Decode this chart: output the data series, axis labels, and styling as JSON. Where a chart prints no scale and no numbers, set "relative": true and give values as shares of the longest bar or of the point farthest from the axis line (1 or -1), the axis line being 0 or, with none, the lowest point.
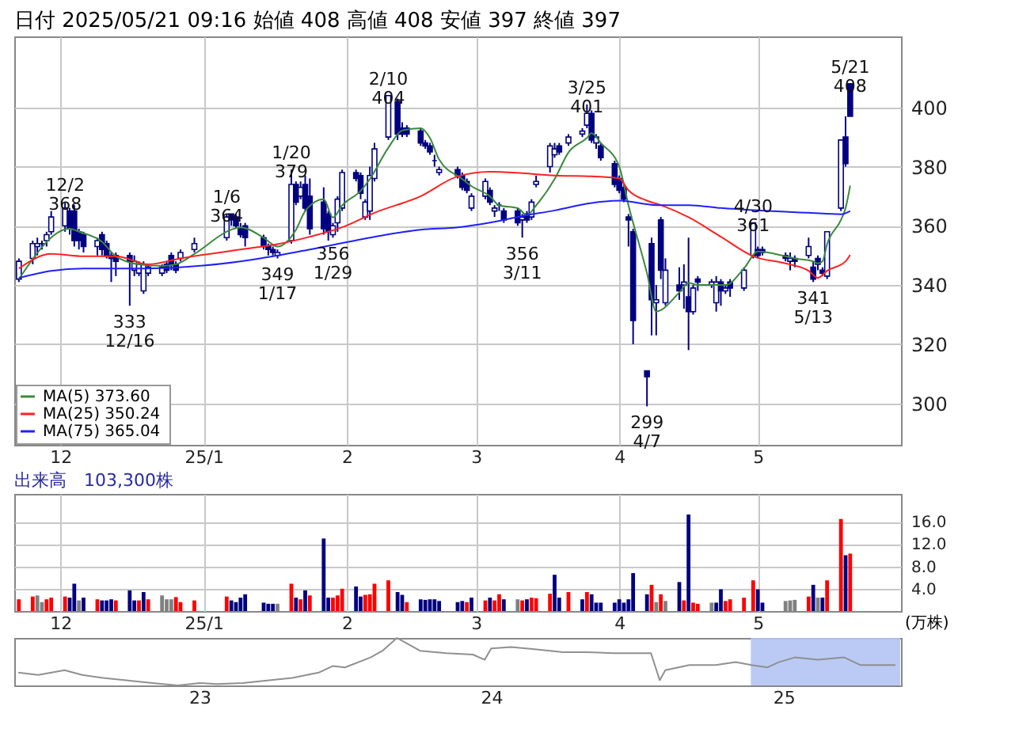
{
  "chart_data": [
    {
      "type": "candlestick",
      "title": "日付 2025/05/21 09:16 始値 408 高値 408 安値 397 終値 397",
      "x": [
        "2024-11-22",
        "2024-11-25",
        "2024-11-26",
        "2024-11-27",
        "2024-11-28",
        "2024-11-29",
        "2024-12-02",
        "2024-12-03",
        "2024-12-04",
        "2024-12-05",
        "2024-12-06",
        "2024-12-09",
        "2024-12-10",
        "2024-12-11",
        "2024-12-12",
        "2024-12-13",
        "2024-12-16",
        "2024-12-17",
        "2024-12-18",
        "2024-12-19",
        "2024-12-20",
        "2024-12-23",
        "2024-12-24",
        "2024-12-25",
        "2024-12-26",
        "2024-12-27",
        "2024-12-30",
        "2025-01-06",
        "2025-01-07",
        "2025-01-08",
        "2025-01-09",
        "2025-01-10",
        "2025-01-14",
        "2025-01-15",
        "2025-01-16",
        "2025-01-17",
        "2025-01-20",
        "2025-01-21",
        "2025-01-22",
        "2025-01-23",
        "2025-01-24",
        "2025-01-27",
        "2025-01-28",
        "2025-01-29",
        "2025-01-30",
        "2025-01-31",
        "2025-02-03",
        "2025-02-04",
        "2025-02-05",
        "2025-02-06",
        "2025-02-07",
        "2025-02-10",
        "2025-02-12",
        "2025-02-13",
        "2025-02-14",
        "2025-02-17",
        "2025-02-18",
        "2025-02-19",
        "2025-02-20",
        "2025-02-21",
        "2025-02-25",
        "2025-02-26",
        "2025-02-27",
        "2025-02-28",
        "2025-03-03",
        "2025-03-04",
        "2025-03-05",
        "2025-03-06",
        "2025-03-07",
        "2025-03-10",
        "2025-03-11",
        "2025-03-12",
        "2025-03-13",
        "2025-03-14",
        "2025-03-17",
        "2025-03-18",
        "2025-03-19",
        "2025-03-21",
        "2025-03-24",
        "2025-03-25",
        "2025-03-26",
        "2025-03-27",
        "2025-03-28",
        "2025-03-31",
        "2025-04-01",
        "2025-04-02",
        "2025-04-03",
        "2025-04-04",
        "2025-04-07",
        "2025-04-08",
        "2025-04-09",
        "2025-04-10",
        "2025-04-11",
        "2025-04-14",
        "2025-04-15",
        "2025-04-16",
        "2025-04-17",
        "2025-04-18",
        "2025-04-21",
        "2025-04-22",
        "2025-04-23",
        "2025-04-24",
        "2025-04-25",
        "2025-04-28",
        "2025-04-30",
        "2025-05-01",
        "2025-05-02",
        "2025-05-07",
        "2025-05-08",
        "2025-05-09",
        "2025-05-12",
        "2025-05-13",
        "2025-05-14",
        "2025-05-15",
        "2025-05-16",
        "2025-05-19",
        "2025-05-20",
        "2025-05-21"
      ],
      "ohlc": [
        [
          342,
          349,
          341,
          348
        ],
        [
          349,
          355,
          347,
          354
        ],
        [
          353,
          356,
          350,
          354
        ],
        [
          354,
          355,
          352,
          354
        ],
        [
          355,
          358,
          353,
          357
        ],
        [
          358,
          365,
          357,
          363
        ],
        [
          360,
          368,
          358,
          366
        ],
        [
          365,
          366,
          357,
          359
        ],
        [
          365,
          367,
          353,
          355
        ],
        [
          358,
          359,
          352,
          355
        ],
        [
          357,
          358,
          351,
          353
        ],
        [
          353,
          356,
          350,
          355
        ],
        [
          357,
          358,
          350,
          352
        ],
        [
          354,
          355,
          349,
          350
        ],
        [
          350,
          351,
          341,
          349
        ],
        [
          350,
          351,
          343,
          348
        ],
        [
          350,
          351,
          333,
          348
        ],
        [
          345,
          350,
          343,
          348
        ],
        [
          344,
          348,
          343,
          347
        ],
        [
          338,
          348,
          337,
          347
        ],
        [
          344,
          347,
          343,
          346
        ],
        [
          344,
          347,
          343,
          346
        ],
        [
          347,
          348,
          344,
          345
        ],
        [
          350,
          351,
          345,
          347
        ],
        [
          347,
          348,
          344,
          345
        ],
        [
          349,
          352,
          348,
          351
        ],
        [
          352,
          356,
          351,
          354
        ],
        [
          356,
          364,
          355,
          363
        ],
        [
          364,
          364,
          360,
          362
        ],
        [
          363,
          364,
          359,
          360
        ],
        [
          359,
          361,
          356,
          357
        ],
        [
          360,
          361,
          353,
          356
        ],
        [
          356,
          357,
          352,
          353
        ],
        [
          353,
          354,
          350,
          352
        ],
        [
          352,
          353,
          350,
          351
        ],
        [
          350,
          352,
          349,
          351
        ],
        [
          355,
          379,
          354,
          374
        ],
        [
          374,
          375,
          367,
          368
        ],
        [
          370,
          375,
          369,
          373
        ],
        [
          374,
          377,
          365,
          366
        ],
        [
          370,
          376,
          357,
          359
        ],
        [
          368,
          373,
          357,
          359
        ],
        [
          364,
          365,
          355,
          358
        ],
        [
          357,
          361,
          356,
          360
        ],
        [
          361,
          370,
          358,
          369
        ],
        [
          366,
          379,
          365,
          378
        ],
        [
          378,
          379,
          375,
          376
        ],
        [
          377,
          378,
          369,
          371
        ],
        [
          363,
          369,
          362,
          368
        ],
        [
          365,
          380,
          362,
          377
        ],
        [
          376,
          388,
          375,
          386
        ],
        [
          390,
          404,
          389,
          404
        ],
        [
          402,
          403,
          389,
          391
        ],
        [
          393,
          395,
          390,
          391
        ],
        [
          393,
          394,
          390,
          391
        ],
        [
          392,
          393,
          387,
          388
        ],
        [
          388,
          389,
          386,
          387
        ],
        [
          387,
          388,
          384,
          385
        ],
        [
          382,
          384,
          380,
          382
        ],
        [
          378,
          380,
          377,
          379
        ],
        [
          379,
          380,
          376,
          377
        ],
        [
          377,
          378,
          372,
          373
        ],
        [
          375,
          376,
          371,
          372
        ],
        [
          366,
          371,
          365,
          370
        ],
        [
          370,
          376,
          369,
          375
        ],
        [
          372,
          373,
          367,
          368
        ],
        [
          365,
          367,
          363,
          366
        ],
        [
          367,
          368,
          365,
          367
        ],
        [
          365,
          366,
          361,
          362
        ],
        [
          365,
          366,
          360,
          361
        ],
        [
          362,
          364,
          356,
          363
        ],
        [
          364,
          365,
          361,
          362
        ],
        [
          363,
          369,
          362,
          368
        ],
        [
          374,
          377,
          373,
          375
        ],
        [
          380,
          388,
          378,
          387
        ],
        [
          384,
          388,
          383,
          386
        ],
        [
          387,
          388,
          384,
          385
        ],
        [
          388,
          391,
          387,
          390
        ],
        [
          391,
          393,
          390,
          392
        ],
        [
          394,
          401,
          393,
          398
        ],
        [
          398,
          399,
          388,
          389
        ],
        [
          388,
          391,
          386,
          390
        ],
        [
          387,
          388,
          382,
          383
        ],
        [
          381,
          382,
          373,
          374
        ],
        [
          376,
          377,
          371,
          372
        ],
        [
          373,
          374,
          368,
          369
        ],
        [
          363,
          364,
          353,
          362
        ],
        [
          358,
          359,
          320,
          328
        ],
        [
          311,
          311,
          299,
          309
        ],
        [
          354,
          356,
          323,
          335
        ],
        [
          334,
          340,
          323,
          335
        ],
        [
          362,
          363,
          342,
          345
        ],
        [
          334,
          349,
          333,
          345
        ],
        [
          340,
          346,
          335,
          338
        ],
        [
          340,
          347,
          332,
          341
        ],
        [
          336,
          356,
          318,
          331
        ],
        [
          331,
          340,
          330,
          339
        ],
        [
          342,
          343,
          338,
          341
        ],
        [
          340,
          342,
          339,
          341
        ],
        [
          334,
          343,
          331,
          341
        ],
        [
          341,
          342,
          333,
          338
        ],
        [
          338,
          340,
          337,
          339
        ],
        [
          341,
          342,
          336,
          339
        ],
        [
          339,
          346,
          338,
          345
        ],
        [
          350,
          361,
          349,
          361
        ],
        [
          352,
          353,
          349,
          350
        ],
        [
          352,
          353,
          350,
          351
        ],
        [
          350,
          351,
          348,
          349
        ],
        [
          348,
          351,
          345,
          349
        ],
        [
          349,
          350,
          346,
          348
        ],
        [
          350,
          356,
          349,
          353
        ],
        [
          346,
          348,
          341,
          342
        ],
        [
          349,
          350,
          345,
          347
        ],
        [
          345,
          346,
          343,
          344
        ],
        [
          343,
          358,
          342,
          358
        ],
        [
          366,
          389,
          365,
          389
        ],
        [
          390,
          397,
          380,
          381
        ],
        [
          408,
          408,
          397,
          397
        ]
      ],
      "colors": [
        "#ffffff",
        "#ffffff",
        "#ffffff",
        "#000080",
        "#ffffff",
        "#ffffff",
        "#ffffff",
        "#000080",
        "#000080",
        "#000080",
        "#000080",
        "#ffffff",
        "#000080",
        "#000080",
        "#000080",
        "#000080",
        "#000080",
        "#ffffff",
        "#ffffff",
        "#ffffff",
        "#ffffff",
        "#ffffff",
        "#000080",
        "#000080",
        "#000080",
        "#ffffff",
        "#ffffff",
        "#ffffff",
        "#000080",
        "#000080",
        "#000080",
        "#000080",
        "#000080",
        "#000080",
        "#000080",
        "#ffffff",
        "#ffffff",
        "#000080",
        "#ffffff",
        "#000080",
        "#000080",
        "#000080",
        "#000080",
        "#ffffff",
        "#ffffff",
        "#ffffff",
        "#000080",
        "#000080",
        "#ffffff",
        "#ffffff",
        "#ffffff",
        "#ffffff",
        "#000080",
        "#000080",
        "#000080",
        "#000080",
        "#000080",
        "#000080",
        "#000080",
        "#ffffff",
        "#000080",
        "#000080",
        "#000080",
        "#ffffff",
        "#ffffff",
        "#000080",
        "#ffffff",
        "#000080",
        "#000080",
        "#000080",
        "#ffffff",
        "#000080",
        "#ffffff",
        "#ffffff",
        "#ffffff",
        "#ffffff",
        "#000080",
        "#ffffff",
        "#ffffff",
        "#ffffff",
        "#000080",
        "#ffffff",
        "#000080",
        "#000080",
        "#000080",
        "#000080",
        "#000080",
        "#000080",
        "#000080",
        "#000080",
        "#ffffff",
        "#000080",
        "#ffffff",
        "#000080",
        "#ffffff",
        "#000080",
        "#ffffff",
        "#000080",
        "#ffffff",
        "#ffffff",
        "#000080",
        "#ffffff",
        "#000080",
        "#ffffff",
        "#ffffff",
        "#000080",
        "#000080",
        "#000080",
        "#ffffff",
        "#000080",
        "#ffffff",
        "#000080",
        "#000080",
        "#000080",
        "#ffffff",
        "#ffffff",
        "#000080",
        "#000080"
      ],
      "series": [
        {
          "name": "MA(5)   373.60",
          "type": "line",
          "color": "#3a8a3a",
          "x": [
            "2024-11-22",
            "2024-12-03",
            "2024-12-05",
            "2024-12-10",
            "2024-12-13",
            "2024-12-18",
            "2024-12-23",
            "2024-12-26",
            "2024-12-30",
            "2025-01-07",
            "2025-01-09",
            "2025-01-14",
            "2025-01-17",
            "2025-01-21",
            "2025-01-23",
            "2025-01-27",
            "2025-01-29",
            "2025-01-31",
            "2025-02-04",
            "2025-02-06",
            "2025-02-10",
            "2025-02-13",
            "2025-02-17",
            "2025-02-19",
            "2025-02-21",
            "2025-02-26",
            "2025-02-28",
            "2025-03-04",
            "2025-03-06",
            "2025-03-10",
            "2025-03-12",
            "2025-03-14",
            "2025-03-18",
            "2025-03-21",
            "2025-03-25",
            "2025-03-26",
            "2025-03-28",
            "2025-04-01",
            "2025-04-03",
            "2025-04-07",
            "2025-04-09",
            "2025-04-10",
            "2025-04-14",
            "2025-04-16",
            "2025-04-18",
            "2025-04-22",
            "2025-04-24",
            "2025-04-28",
            "2025-05-01",
            "2025-05-07",
            "2025-05-09",
            "2025-05-13",
            "2025-05-14",
            "2025-05-15",
            "2025-05-16",
            "2025-05-19",
            "2025-05-20",
            "2025-05-21"
          ],
          "values": [
            342,
            359,
            358,
            354.6,
            349.7,
            347,
            346.5,
            347,
            350.5,
            358.7,
            359.5,
            356,
            353,
            358.7,
            365,
            369,
            362.8,
            366.9,
            371.8,
            375.8,
            386.4,
            392.2,
            393,
            389.7,
            382.4,
            375.8,
            373.4,
            370,
            366.9,
            366,
            363.6,
            366.9,
            375.8,
            384.8,
            389.7,
            391.3,
            388,
            380,
            366.9,
            344,
            331,
            331.5,
            337.5,
            340.7,
            340,
            340,
            340,
            345.6,
            351.3,
            349.7,
            349,
            348,
            347.3,
            348,
            353.8,
            362,
            366,
            373.6
          ]
        },
        {
          "name": "MA(25)  350.24",
          "type": "line",
          "color": "#ff2020",
          "x": [
            "2024-11-22",
            "2024-11-29",
            "2024-12-06",
            "2024-12-13",
            "2024-12-20",
            "2024-12-27",
            "2025-01-09",
            "2025-01-17",
            "2025-01-24",
            "2025-01-31",
            "2025-02-07",
            "2025-02-17",
            "2025-02-25",
            "2025-03-04",
            "2025-03-11",
            "2025-03-18",
            "2025-03-26",
            "2025-04-01",
            "2025-04-03",
            "2025-04-07",
            "2025-04-10",
            "2025-04-16",
            "2025-04-23",
            "2025-04-30",
            "2025-05-07",
            "2025-05-12",
            "2025-05-14",
            "2025-05-16",
            "2025-05-20",
            "2025-05-21"
          ],
          "values": [
            345.6,
            350.5,
            349.7,
            349.7,
            347,
            349,
            352,
            353.8,
            356.3,
            359.5,
            364.4,
            370,
            376.7,
            378.3,
            377.8,
            377,
            376.7,
            376,
            372,
            368.5,
            367,
            362.9,
            356.3,
            349.7,
            347.3,
            344.8,
            342.4,
            344.8,
            348,
            350.2
          ]
        },
        {
          "name": "MA(75)  365.04",
          "type": "line",
          "color": "#2020ff",
          "x": [
            "2024-11-22",
            "2024-11-29",
            "2024-12-06",
            "2024-12-20",
            "2025-01-09",
            "2025-01-24",
            "2025-02-07",
            "2025-02-17",
            "2025-02-25",
            "2025-03-04",
            "2025-03-11",
            "2025-03-18",
            "2025-03-26",
            "2025-04-01",
            "2025-04-09",
            "2025-04-16",
            "2025-04-23",
            "2025-05-01",
            "2025-05-12",
            "2025-05-19",
            "2025-05-21"
          ],
          "values": [
            342.4,
            344.8,
            345.6,
            345.6,
            348,
            352,
            356.3,
            358.7,
            359.5,
            361.1,
            363.3,
            365.2,
            367.7,
            368.5,
            367,
            367,
            366,
            365.2,
            364.4,
            363.9,
            365
          ]
        }
      ],
      "annotations": [
        {
          "text": "12/2\n368",
          "x": "2024-12-02",
          "y": 368
        },
        {
          "text": "333\n12/16",
          "x": "2024-12-16",
          "y": 333
        },
        {
          "text": "1/6\n364",
          "x": "2025-01-06",
          "y": 364
        },
        {
          "text": "349\n1/17",
          "x": "2025-01-17",
          "y": 349
        },
        {
          "text": "1/20\n379",
          "x": "2025-01-20",
          "y": 379
        },
        {
          "text": "356\n1/29",
          "x": "2025-01-29",
          "y": 356
        },
        {
          "text": "2/10\n404",
          "x": "2025-02-10",
          "y": 404
        },
        {
          "text": "356\n3/11",
          "x": "2025-03-11",
          "y": 356
        },
        {
          "text": "3/25\n401",
          "x": "2025-03-25",
          "y": 401
        },
        {
          "text": "299\n4/7",
          "x": "2025-04-07",
          "y": 299
        },
        {
          "text": "4/30\n361",
          "x": "2025-04-30",
          "y": 361
        },
        {
          "text": "341\n5/13",
          "x": "2025-05-13",
          "y": 341
        },
        {
          "text": "5/21\n408",
          "x": "2025-05-21",
          "y": 408
        }
      ],
      "xlim": [
        "2024-11-21",
        "2025-06-01"
      ],
      "xticks": [
        {
          "value": "2024-12",
          "label": "12"
        },
        {
          "value": "2025-01",
          "label": "25/1"
        },
        {
          "value": "2025-02",
          "label": "2"
        },
        {
          "value": "2025-03",
          "label": "3"
        },
        {
          "value": "2025-04",
          "label": "4"
        },
        {
          "value": "2025-05",
          "label": "5"
        }
      ],
      "ylim": [
        286,
        424
      ],
      "yticks": [
        300,
        320,
        340,
        360,
        380,
        400
      ],
      "grid": true,
      "legend": "bottom left"
    },
    {
      "type": "bar",
      "title": "出来高　103,300株",
      "ylabel": "(万株)",
      "x": [
        "2024-11-22",
        "2024-11-25",
        "2024-11-26",
        "2024-11-27",
        "2024-11-28",
        "2024-11-29",
        "2024-12-02",
        "2024-12-03",
        "2024-12-04",
        "2024-12-05",
        "2024-12-06",
        "2024-12-09",
        "2024-12-10",
        "2024-12-11",
        "2024-12-12",
        "2024-12-13",
        "2024-12-16",
        "2024-12-17",
        "2024-12-18",
        "2024-12-19",
        "2024-12-20",
        "2024-12-23",
        "2024-12-24",
        "2024-12-25",
        "2024-12-26",
        "2024-12-27",
        "2024-12-30",
        "2025-01-06",
        "2025-01-07",
        "2025-01-08",
        "2025-01-09",
        "2025-01-10",
        "2025-01-14",
        "2025-01-15",
        "2025-01-16",
        "2025-01-17",
        "2025-01-20",
        "2025-01-21",
        "2025-01-22",
        "2025-01-23",
        "2025-01-24",
        "2025-01-27",
        "2025-01-28",
        "2025-01-29",
        "2025-01-30",
        "2025-01-31",
        "2025-02-03",
        "2025-02-04",
        "2025-02-05",
        "2025-02-06",
        "2025-02-07",
        "2025-02-10",
        "2025-02-12",
        "2025-02-13",
        "2025-02-14",
        "2025-02-17",
        "2025-02-18",
        "2025-02-19",
        "2025-02-20",
        "2025-02-21",
        "2025-02-25",
        "2025-02-26",
        "2025-02-27",
        "2025-02-28",
        "2025-03-03",
        "2025-03-04",
        "2025-03-05",
        "2025-03-06",
        "2025-03-07",
        "2025-03-10",
        "2025-03-11",
        "2025-03-12",
        "2025-03-13",
        "2025-03-14",
        "2025-03-17",
        "2025-03-18",
        "2025-03-19",
        "2025-03-21",
        "2025-03-24",
        "2025-03-25",
        "2025-03-26",
        "2025-03-27",
        "2025-03-28",
        "2025-03-31",
        "2025-04-01",
        "2025-04-02",
        "2025-04-03",
        "2025-04-04",
        "2025-04-07",
        "2025-04-08",
        "2025-04-09",
        "2025-04-10",
        "2025-04-11",
        "2025-04-14",
        "2025-04-15",
        "2025-04-16",
        "2025-04-17",
        "2025-04-18",
        "2025-04-21",
        "2025-04-22",
        "2025-04-23",
        "2025-04-24",
        "2025-04-25",
        "2025-04-28",
        "2025-04-30",
        "2025-05-01",
        "2025-05-02",
        "2025-05-07",
        "2025-05-08",
        "2025-05-09",
        "2025-05-12",
        "2025-05-13",
        "2025-05-14",
        "2025-05-15",
        "2025-05-16",
        "2025-05-19",
        "2025-05-20",
        "2025-05-21"
      ],
      "values": [
        2.1,
        2.6,
        2.8,
        1.6,
        2.1,
        2.4,
        2.6,
        2.4,
        4.9,
        1.9,
        2.4,
        2.1,
        1.9,
        1.9,
        2.1,
        1.9,
        3.7,
        1.9,
        1.9,
        3.4,
        2.1,
        2.8,
        2.1,
        2.1,
        2.5,
        1.6,
        1.9,
        2.6,
        1.9,
        1.6,
        2.4,
        3.0,
        1.5,
        1.3,
        1.3,
        1.3,
        4.9,
        2.4,
        2.1,
        3.7,
        2.8,
        13.0,
        2.4,
        2.4,
        2.8,
        4.0,
        4.4,
        2.6,
        2.9,
        3.0,
        4.9,
        5.5,
        3.4,
        2.9,
        1.6,
        2.1,
        2.0,
        2.1,
        2.1,
        1.8,
        1.6,
        1.8,
        1.6,
        2.4,
        1.9,
        2.4,
        1.9,
        3.0,
        2.1,
        2.1,
        1.9,
        2.1,
        2.4,
        2.3,
        3.1,
        6.5,
        2.4,
        3.4,
        2.1,
        3.4,
        3.0,
        1.5,
        1.5,
        1.5,
        2.1,
        1.5,
        2.1,
        6.8,
        3.0,
        4.7,
        1.6,
        3.0,
        1.8,
        5.2,
        1.9,
        17.3,
        1.5,
        1.3,
        1.5,
        1.5,
        3.9,
        1.8,
        2.1,
        2.4,
        5.5,
        3.9,
        1.5,
        1.8,
        1.9,
        2.0,
        2.6,
        4.7,
        2.4,
        2.4,
        5.5,
        16.5,
        10.0,
        10.3
      ],
      "colors": [
        "#ff0000",
        "#ff0000",
        "#808080",
        "#808080",
        "#ff0000",
        "#ff0000",
        "#ff0000",
        "#000080",
        "#000080",
        "#808080",
        "#000080",
        "#ff0000",
        "#000080",
        "#000080",
        "#000080",
        "#ff0000",
        "#000080",
        "#000080",
        "#ff0000",
        "#000080",
        "#ff0000",
        "#808080",
        "#808080",
        "#808080",
        "#ff0000",
        "#ff0000",
        "#ff0000",
        "#ff0000",
        "#000080",
        "#000080",
        "#000080",
        "#000080",
        "#000080",
        "#000080",
        "#000080",
        "#808080",
        "#ff0000",
        "#000080",
        "#ff0000",
        "#000080",
        "#ff0000",
        "#000080",
        "#000080",
        "#ff0000",
        "#ff0000",
        "#ff0000",
        "#000080",
        "#000080",
        "#ff0000",
        "#ff0000",
        "#ff0000",
        "#ff0000",
        "#000080",
        "#000080",
        "#ff0000",
        "#000080",
        "#000080",
        "#000080",
        "#000080",
        "#000080",
        "#000080",
        "#000080",
        "#ff0000",
        "#000080",
        "#ff0000",
        "#000080",
        "#ff0000",
        "#ff0000",
        "#000080",
        "#808080",
        "#ff0000",
        "#000080",
        "#ff0000",
        "#ff0000",
        "#ff0000",
        "#000080",
        "#000080",
        "#ff0000",
        "#000080",
        "#ff0000",
        "#000080",
        "#000080",
        "#000080",
        "#000080",
        "#000080",
        "#000080",
        "#000080",
        "#000080",
        "#000080",
        "#ff0000",
        "#808080",
        "#ff0000",
        "#808080",
        "#000080",
        "#ff0000",
        "#000080",
        "#ff0000",
        "#ff0000",
        "#808080",
        "#000080",
        "#000080",
        "#ff0000",
        "#ff0000",
        "#ff0000",
        "#ff0000",
        "#000080",
        "#000080",
        "#808080",
        "#808080",
        "#808080",
        "#ff0000",
        "#000080",
        "#808080",
        "#000080",
        "#ff0000",
        "#ff0000",
        "#000080",
        "#ff0000"
      ],
      "xlim": [
        "2024-11-21",
        "2025-06-01"
      ],
      "xticks": [
        {
          "value": "2024-12",
          "label": "12"
        },
        {
          "value": "2025-01",
          "label": "25/1"
        },
        {
          "value": "2025-02",
          "label": "2"
        },
        {
          "value": "2025-03",
          "label": "3"
        },
        {
          "value": "2025-04",
          "label": "4"
        },
        {
          "value": "2025-05",
          "label": "5"
        }
      ],
      "ylim": [
        0,
        21
      ],
      "yticks": [
        {
          "value": 4,
          "label": "4.0"
        },
        {
          "value": 8,
          "label": "8.0"
        },
        {
          "value": 12,
          "label": "12.0"
        },
        {
          "value": 16,
          "label": "16.0"
        }
      ],
      "grid": true
    },
    {
      "type": "line",
      "relative": true,
      "color": "#909090",
      "x": [
        "2022-05-19",
        "2022-06-13",
        "2022-07-16",
        "2022-08-07",
        "2022-09-02",
        "2022-10-01",
        "2022-11-03",
        "2022-12-05",
        "2023-01-01",
        "2023-01-22",
        "2023-02-24",
        "2023-03-29",
        "2023-04-27",
        "2023-05-30",
        "2023-06-17",
        "2023-07-02",
        "2023-08-03",
        "2023-08-18",
        "2023-09-05",
        "2023-09-20",
        "2023-10-04",
        "2023-11-06",
        "2023-12-09",
        "2023-12-24",
        "2024-01-01",
        "2024-01-26",
        "2024-02-27",
        "2024-03-31",
        "2024-04-30",
        "2024-06-02",
        "2024-07-05",
        "2024-07-19",
        "2024-07-30",
        "2024-08-06",
        "2024-09-05",
        "2024-10-08",
        "2024-11-02",
        "2024-11-22",
        "2024-12-12",
        "2024-12-26",
        "2025-01-15",
        "2025-02-13",
        "2025-03-18",
        "2025-04-07",
        "2025-05-21"
      ],
      "values": [
        0.27,
        0.22,
        0.32,
        0.22,
        0.16,
        0.11,
        0.05,
        0,
        0.05,
        0.03,
        0.05,
        0.11,
        0.16,
        0.27,
        0.41,
        0.38,
        0.59,
        0.73,
        1,
        0.86,
        0.73,
        0.68,
        0.65,
        0.54,
        0.78,
        0.81,
        0.76,
        0.7,
        0.7,
        0.68,
        0.68,
        0.68,
        0.11,
        0.32,
        0.43,
        0.43,
        0.49,
        0.43,
        0.38,
        0.49,
        0.59,
        0.54,
        0.59,
        0.43,
        0.43
      ],
      "xlim": [
        "2022-05-14",
        "2025-05-28"
      ],
      "xticks": [
        {
          "value": "2023-01-01",
          "label": "23"
        },
        {
          "value": "2024-01-01",
          "label": "24"
        },
        {
          "value": "2025-01-01",
          "label": "25"
        }
      ],
      "bands": [
        {
          "axis": "x",
          "from": "2024-11-21",
          "to": "2025-05-27",
          "color": "#b4c4f4"
        }
      ],
      "tick_labels": "x"
    }
  ]
}
